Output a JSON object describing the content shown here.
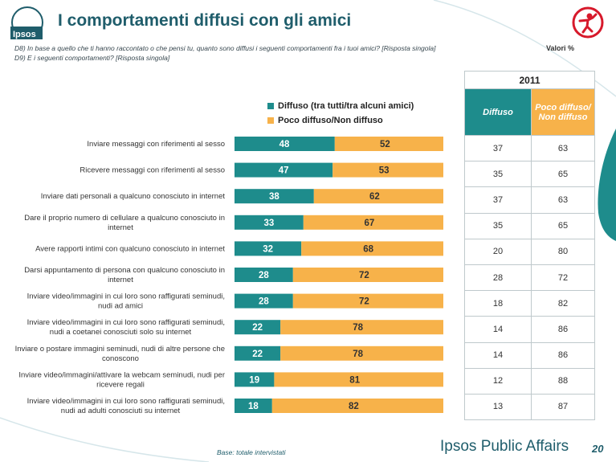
{
  "header": {
    "title": "I comportamenti diffusi con gli amici",
    "question1": "D8) In base a quello che ti hanno raccontato o che pensi tu, quanto sono diffusi i seguenti comportamenti fra i tuoi amici? [Risposta singola]",
    "question2": "D9) E i seguenti comportamenti? [Risposta singola]",
    "valori": "Valori %",
    "logo_text": "Ipsos"
  },
  "colors": {
    "teal": "#1e8c8c",
    "orange": "#f7b24a",
    "brand": "#1f5d6b",
    "accent_red": "#d7192b"
  },
  "icons": [
    "ipsos-logo-icon",
    "save-the-children-logo-icon"
  ],
  "legend": {
    "series1": "Diffuso (tra tutti/tra alcuni amici)",
    "series2": "Poco diffuso/Non diffuso"
  },
  "chart_data": {
    "type": "bar",
    "orientation": "horizontal",
    "stacked": true,
    "categories": [
      "Inviare messaggi con riferimenti al sesso",
      "Ricevere messaggi con riferimenti al sesso",
      "Inviare dati personali a qualcuno conosciuto in internet",
      "Dare il proprio numero di cellulare a qualcuno conosciuto in internet",
      "Avere rapporti intimi con qualcuno conosciuto in internet",
      "Darsi appuntamento di persona con qualcuno conosciuto in internet",
      "Inviare video/immagini in cui loro sono raffigurati seminudi, nudi ad amici",
      "Inviare video/immagini in cui loro sono raffigurati seminudi, nudi a coetanei conosciuti solo su internet",
      "Inviare o postare immagini seminudi, nudi di altre persone che conoscono",
      "Inviare video/immagini/attivare la webcam seminudi, nudi per ricevere regali",
      "Inviare video/immagini in cui loro sono raffigurati seminudi, nudi ad adulti conosciuti su internet"
    ],
    "category_lines": [
      [
        "Inviare messaggi con riferimenti al sesso"
      ],
      [
        "Ricevere messaggi con riferimenti al sesso"
      ],
      [
        "Inviare dati personali a qualcuno conosciuto in internet"
      ],
      [
        "Dare il proprio numero di cellulare a qualcuno conosciuto in",
        "internet"
      ],
      [
        "Avere rapporti intimi con qualcuno conosciuto in internet"
      ],
      [
        "Darsi appuntamento di persona con qualcuno conosciuto in",
        "internet"
      ],
      [
        "Inviare video/immagini in cui loro sono raffigurati seminudi,",
        "nudi ad amici"
      ],
      [
        "Inviare video/immagini in cui loro sono raffigurati seminudi,",
        "nudi a coetanei conosciuti solo su internet"
      ],
      [
        "Inviare o postare immagini seminudi, nudi di altre persone che",
        "conoscono"
      ],
      [
        "Inviare video/immagini/attivare la webcam seminudi, nudi per",
        "ricevere regali"
      ],
      [
        "Inviare video/immagini in cui loro sono raffigurati seminudi,",
        "nudi ad adulti conosciuti su internet"
      ]
    ],
    "series": [
      {
        "name": "Diffuso (tra tutti/tra alcuni amici)",
        "values": [
          48,
          47,
          38,
          33,
          32,
          28,
          28,
          22,
          22,
          19,
          18
        ]
      },
      {
        "name": "Poco diffuso/Non diffuso",
        "values": [
          52,
          53,
          62,
          67,
          68,
          72,
          72,
          78,
          78,
          81,
          82
        ]
      }
    ],
    "xlim": [
      0,
      100
    ],
    "legend_position": "top-right"
  },
  "table_2011": {
    "year": "2011",
    "col1": "Diffuso",
    "col2": "Poco diffuso/ Non diffuso",
    "rows": [
      [
        "37",
        "63"
      ],
      [
        "35",
        "65"
      ],
      [
        "37",
        "63"
      ],
      [
        "35",
        "65"
      ],
      [
        "20",
        "80"
      ],
      [
        "28",
        "72"
      ],
      [
        "18",
        "82"
      ],
      [
        "14",
        "86"
      ],
      [
        "14",
        "86"
      ],
      [
        "12",
        "88"
      ],
      [
        "13",
        "87"
      ]
    ]
  },
  "footer": {
    "base": "Base: totale intervistati",
    "brand": "Ipsos Public Affairs",
    "page": "20"
  }
}
